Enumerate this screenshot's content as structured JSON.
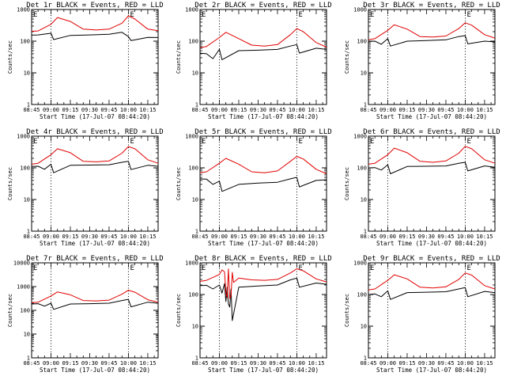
{
  "chart_data": [
    {
      "type": "line",
      "title": "Det 1r BLACK = Events, RED = LLD",
      "ylabel": "Counts/sec",
      "xlabel": "Start Time (17-Jul-07 08:44:20)",
      "yscale": "log",
      "ylim": [
        1,
        1000
      ],
      "ytick_labels": [
        "1",
        "10",
        "100",
        "1000"
      ],
      "xlim": [
        "08:45",
        "10:23"
      ],
      "xtick_labels": [
        "08:45",
        "09:00",
        "09:15",
        "09:30",
        "09:45",
        "10:00",
        "10:15"
      ],
      "vlines": [
        "09:00",
        "10:00"
      ],
      "markers": [
        {
          "text": "E",
          "x": "08:45"
        },
        {
          "text": "E",
          "x": "10:00"
        }
      ],
      "series": [
        {
          "color": "#000000",
          "x": [
            "08:45",
            "08:50",
            "09:00",
            "09:02",
            "09:15",
            "09:30",
            "09:45",
            "09:55",
            "10:00",
            "10:02",
            "10:15",
            "10:23"
          ],
          "values": [
            155,
            158,
            178,
            112,
            152,
            158,
            165,
            190,
            140,
            105,
            132,
            130
          ]
        },
        {
          "color": "#e00000",
          "x": [
            "08:45",
            "08:50",
            "09:00",
            "09:05",
            "09:15",
            "09:25",
            "09:35",
            "09:45",
            "09:55",
            "10:00",
            "10:05",
            "10:15",
            "10:23"
          ],
          "values": [
            205,
            210,
            340,
            560,
            420,
            240,
            225,
            240,
            370,
            630,
            500,
            240,
            215
          ]
        }
      ]
    },
    {
      "type": "line",
      "title": "Det 2r BLACK = Events, RED = LLD",
      "ylabel": "Counts/sec",
      "xlabel": "Start Time (17-Jul-07 08:44:20)",
      "yscale": "log",
      "ylim": [
        1,
        1000
      ],
      "ytick_labels": [
        "1",
        "10",
        "100",
        "1000"
      ],
      "xlim": [
        "08:45",
        "10:23"
      ],
      "xtick_labels": [
        "08:45",
        "09:00",
        "09:15",
        "09:30",
        "09:45",
        "10:00",
        "10:15"
      ],
      "vlines": [
        "09:00",
        "10:00"
      ],
      "markers": [
        {
          "text": "E",
          "x": "08:45"
        },
        {
          "text": "E",
          "x": "10:00"
        }
      ],
      "series": [
        {
          "color": "#000000",
          "x": [
            "08:45",
            "08:50",
            "08:55",
            "09:00",
            "09:02",
            "09:15",
            "09:30",
            "09:45",
            "09:55",
            "10:00",
            "10:02",
            "10:15",
            "10:23"
          ],
          "values": [
            42,
            40,
            28,
            55,
            26,
            50,
            52,
            55,
            70,
            78,
            42,
            60,
            55
          ]
        },
        {
          "color": "#e00000",
          "x": [
            "08:45",
            "08:50",
            "09:00",
            "09:05",
            "09:15",
            "09:25",
            "09:35",
            "09:45",
            "09:55",
            "10:00",
            "10:05",
            "10:15",
            "10:23"
          ],
          "values": [
            62,
            68,
            130,
            190,
            120,
            75,
            70,
            78,
            160,
            250,
            200,
            90,
            65
          ]
        }
      ]
    },
    {
      "type": "line",
      "title": "Det 3r BLACK = Events, RED = LLD",
      "ylabel": "Counts/sec",
      "xlabel": "Start Time (17-Jul-07 08:44:20)",
      "yscale": "log",
      "ylim": [
        1,
        1000
      ],
      "ytick_labels": [
        "1",
        "10",
        "100",
        "1000"
      ],
      "xlim": [
        "08:45",
        "10:23"
      ],
      "xtick_labels": [
        "08:45",
        "09:00",
        "09:15",
        "09:30",
        "09:45",
        "10:00",
        "10:15"
      ],
      "vlines": [
        "09:00",
        "10:00"
      ],
      "markers": [
        {
          "text": "E",
          "x": "08:45"
        },
        {
          "text": "E",
          "x": "10:00"
        }
      ],
      "series": [
        {
          "color": "#000000",
          "x": [
            "08:45",
            "08:50",
            "08:55",
            "09:00",
            "09:02",
            "09:15",
            "09:30",
            "09:45",
            "09:55",
            "10:00",
            "10:02",
            "10:15",
            "10:23"
          ],
          "values": [
            98,
            100,
            80,
            120,
            70,
            100,
            105,
            110,
            140,
            150,
            82,
            100,
            95
          ]
        },
        {
          "color": "#e00000",
          "x": [
            "08:45",
            "08:50",
            "09:00",
            "09:05",
            "09:15",
            "09:25",
            "09:35",
            "09:45",
            "09:55",
            "10:00",
            "10:05",
            "10:15",
            "10:23"
          ],
          "values": [
            110,
            120,
            220,
            330,
            240,
            140,
            135,
            145,
            250,
            380,
            320,
            160,
            125
          ]
        }
      ]
    },
    {
      "type": "line",
      "title": "Det 4r BLACK = Events, RED = LLD",
      "ylabel": "Counts/sec",
      "xlabel": "Start Time (17-Jul-07 08:44:20)",
      "yscale": "log",
      "ylim": [
        1,
        1000
      ],
      "ytick_labels": [
        "1",
        "10",
        "100",
        "1000"
      ],
      "xlim": [
        "08:45",
        "10:23"
      ],
      "xtick_labels": [
        "08:45",
        "09:00",
        "09:15",
        "09:30",
        "09:45",
        "10:00",
        "10:15"
      ],
      "vlines": [
        "09:00",
        "10:00"
      ],
      "markers": [
        {
          "text": "E",
          "x": "08:45"
        },
        {
          "text": "E",
          "x": "10:00"
        }
      ],
      "series": [
        {
          "color": "#000000",
          "x": [
            "08:45",
            "08:50",
            "08:55",
            "09:00",
            "09:02",
            "09:15",
            "09:30",
            "09:45",
            "09:55",
            "10:00",
            "10:02",
            "10:15",
            "10:23"
          ],
          "values": [
            110,
            112,
            90,
            130,
            70,
            120,
            122,
            125,
            150,
            160,
            88,
            120,
            112
          ]
        },
        {
          "color": "#e00000",
          "x": [
            "08:45",
            "08:50",
            "09:00",
            "09:05",
            "09:15",
            "09:25",
            "09:35",
            "09:45",
            "09:55",
            "10:00",
            "10:05",
            "10:15",
            "10:23"
          ],
          "values": [
            130,
            140,
            260,
            400,
            300,
            160,
            155,
            165,
            290,
            470,
            400,
            180,
            140
          ]
        }
      ]
    },
    {
      "type": "line",
      "title": "Det 5r BLACK = Events, RED = LLD",
      "ylabel": "Counts/sec",
      "xlabel": "Start Time (17-Jul-07 08:44:20)",
      "yscale": "log",
      "ylim": [
        1,
        1000
      ],
      "ytick_labels": [
        "1",
        "10",
        "100",
        "1000"
      ],
      "xlim": [
        "08:45",
        "10:23"
      ],
      "xtick_labels": [
        "08:45",
        "09:00",
        "09:15",
        "09:30",
        "09:45",
        "10:00",
        "10:15"
      ],
      "vlines": [
        "09:00",
        "10:00"
      ],
      "markers": [
        {
          "text": "E",
          "x": "08:45"
        },
        {
          "text": "E",
          "x": "10:00"
        }
      ],
      "series": [
        {
          "color": "#000000",
          "x": [
            "08:45",
            "08:50",
            "08:55",
            "09:00",
            "09:02",
            "09:15",
            "09:30",
            "09:45",
            "09:55",
            "10:00",
            "10:02",
            "10:15",
            "10:23"
          ],
          "values": [
            45,
            44,
            30,
            38,
            18,
            30,
            33,
            35,
            45,
            50,
            25,
            40,
            42
          ]
        },
        {
          "color": "#e00000",
          "x": [
            "08:45",
            "08:50",
            "09:00",
            "09:05",
            "09:15",
            "09:25",
            "09:35",
            "09:45",
            "09:55",
            "10:00",
            "10:05",
            "10:15",
            "10:23"
          ],
          "values": [
            70,
            75,
            140,
            200,
            130,
            75,
            70,
            80,
            160,
            230,
            190,
            90,
            65
          ]
        }
      ]
    },
    {
      "type": "line",
      "title": "Det 6r BLACK = Events, RED = LLD",
      "ylabel": "Counts/sec",
      "xlabel": "Start Time (17-Jul-07 08:44:20)",
      "yscale": "log",
      "ylim": [
        1,
        1000
      ],
      "ytick_labels": [
        "1",
        "10",
        "100",
        "1000"
      ],
      "xlim": [
        "08:45",
        "10:23"
      ],
      "xtick_labels": [
        "08:45",
        "09:00",
        "09:15",
        "09:30",
        "09:45",
        "10:00",
        "10:15"
      ],
      "vlines": [
        "09:00",
        "10:00"
      ],
      "markers": [
        {
          "text": "E",
          "x": "08:45"
        },
        {
          "text": "E",
          "x": "10:00"
        }
      ],
      "series": [
        {
          "color": "#000000",
          "x": [
            "08:45",
            "08:50",
            "08:55",
            "09:00",
            "09:02",
            "09:15",
            "09:30",
            "09:45",
            "09:55",
            "10:00",
            "10:02",
            "10:15",
            "10:23"
          ],
          "values": [
            100,
            102,
            85,
            125,
            65,
            110,
            112,
            115,
            140,
            150,
            80,
            115,
            105
          ]
        },
        {
          "color": "#e00000",
          "x": [
            "08:45",
            "08:50",
            "09:00",
            "09:05",
            "09:15",
            "09:25",
            "09:35",
            "09:45",
            "09:55",
            "10:00",
            "10:05",
            "10:15",
            "10:23"
          ],
          "values": [
            130,
            140,
            260,
            420,
            300,
            160,
            150,
            165,
            290,
            480,
            400,
            180,
            140
          ]
        }
      ]
    },
    {
      "type": "line",
      "title": "Det 7r BLACK = Events, RED = LLD",
      "ylabel": "Counts/sec",
      "xlabel": "Start Time (17-Jul-07 08:44:20)",
      "yscale": "log",
      "ylim": [
        1,
        10000
      ],
      "ytick_labels": [
        "1",
        "10",
        "100",
        "1000",
        "10000"
      ],
      "xlim": [
        "08:45",
        "10:23"
      ],
      "xtick_labels": [
        "08:45",
        "09:00",
        "09:15",
        "09:30",
        "09:45",
        "10:00",
        "10:15"
      ],
      "vlines": [
        "09:00",
        "10:00"
      ],
      "markers": [
        {
          "text": "E",
          "x": "08:45"
        },
        {
          "text": "E",
          "x": "10:00"
        }
      ],
      "series": [
        {
          "color": "#000000",
          "x": [
            "08:45",
            "08:50",
            "08:55",
            "09:00",
            "09:02",
            "09:15",
            "09:30",
            "09:45",
            "09:55",
            "10:00",
            "10:02",
            "10:15",
            "10:23"
          ],
          "values": [
            185,
            190,
            150,
            200,
            110,
            185,
            190,
            200,
            260,
            290,
            140,
            220,
            200
          ]
        },
        {
          "color": "#e00000",
          "x": [
            "08:45",
            "08:50",
            "09:00",
            "09:05",
            "09:15",
            "09:25",
            "09:35",
            "09:45",
            "09:55",
            "10:00",
            "10:05",
            "10:15",
            "10:23"
          ],
          "values": [
            210,
            220,
            400,
            600,
            450,
            260,
            250,
            270,
            480,
            700,
            580,
            280,
            220
          ]
        }
      ]
    },
    {
      "type": "line",
      "title": "Det 8r BLACK = Events, RED = LLD",
      "ylabel": "Counts/sec",
      "xlabel": "Start Time (17-Jul-07 08:44:20)",
      "yscale": "log",
      "ylim": [
        1,
        1000
      ],
      "ytick_labels": [
        "1",
        "10",
        "100",
        "1000"
      ],
      "xlim": [
        "08:45",
        "10:23"
      ],
      "xtick_labels": [
        "08:45",
        "09:00",
        "09:15",
        "09:30",
        "09:45",
        "10:00",
        "10:15"
      ],
      "vlines": [
        "09:00",
        "10:00"
      ],
      "markers": [
        {
          "text": "E",
          "x": "08:45"
        },
        {
          "text": "E",
          "x": "10:00"
        }
      ],
      "series": [
        {
          "color": "#000000",
          "x": [
            "08:45",
            "08:50",
            "08:55",
            "09:00",
            "09:02",
            "09:04",
            "09:05",
            "09:06",
            "09:07",
            "09:08",
            "09:09",
            "09:10",
            "09:15",
            "09:30",
            "09:45",
            "09:55",
            "10:00",
            "10:02",
            "10:15",
            "10:23"
          ],
          "values": [
            190,
            195,
            150,
            200,
            110,
            220,
            60,
            170,
            50,
            40,
            150,
            15,
            170,
            185,
            200,
            290,
            330,
            170,
            230,
            210
          ]
        },
        {
          "color": "#e00000",
          "x": [
            "08:45",
            "08:50",
            "09:00",
            "09:02",
            "09:04",
            "09:05",
            "09:06",
            "09:07",
            "09:08",
            "09:09",
            "09:10",
            "09:11",
            "09:15",
            "09:25",
            "09:35",
            "09:45",
            "09:55",
            "10:00",
            "10:05",
            "10:15",
            "10:23"
          ],
          "values": [
            260,
            280,
            430,
            600,
            520,
            110,
            80,
            640,
            75,
            90,
            500,
            240,
            330,
            290,
            280,
            300,
            480,
            650,
            560,
            310,
            250
          ]
        }
      ]
    },
    {
      "type": "line",
      "title": "Det 9r BLACK = Events, RED = LLD",
      "ylabel": "Counts/sec",
      "xlabel": "Start Time (17-Jul-07 08:44:20)",
      "yscale": "log",
      "ylim": [
        1,
        1000
      ],
      "ytick_labels": [
        "1",
        "10",
        "100",
        "1000"
      ],
      "xlim": [
        "08:45",
        "10:23"
      ],
      "xtick_labels": [
        "08:45",
        "09:00",
        "09:15",
        "09:30",
        "09:45",
        "10:00",
        "10:15"
      ],
      "vlines": [
        "09:00",
        "10:00"
      ],
      "markers": [
        {
          "text": "E",
          "x": "08:45"
        },
        {
          "text": "E",
          "x": "10:00"
        }
      ],
      "series": [
        {
          "color": "#000000",
          "x": [
            "08:45",
            "08:50",
            "08:55",
            "09:00",
            "09:02",
            "09:15",
            "09:30",
            "09:45",
            "09:55",
            "10:00",
            "10:02",
            "10:15",
            "10:23"
          ],
          "values": [
            100,
            104,
            85,
            130,
            70,
            115,
            118,
            122,
            150,
            165,
            85,
            125,
            115
          ]
        },
        {
          "color": "#e00000",
          "x": [
            "08:45",
            "08:50",
            "09:00",
            "09:05",
            "09:15",
            "09:25",
            "09:35",
            "09:45",
            "09:55",
            "10:00",
            "10:05",
            "10:15",
            "10:23"
          ],
          "values": [
            140,
            150,
            280,
            420,
            310,
            170,
            160,
            175,
            300,
            480,
            410,
            190,
            150
          ]
        }
      ]
    }
  ]
}
